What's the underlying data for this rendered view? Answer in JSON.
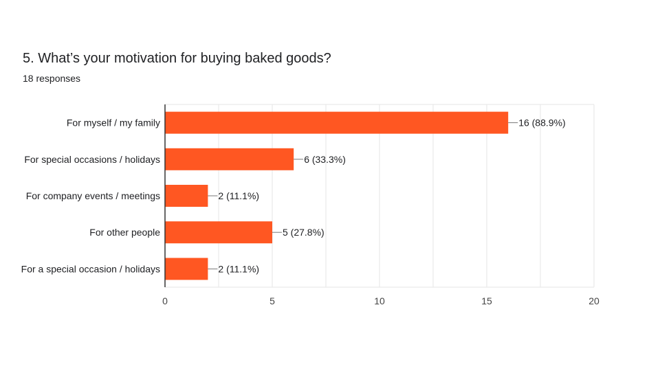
{
  "header": {
    "title": "5. What’s your motivation for buying baked goods?",
    "subtitle": "18 responses"
  },
  "colors": {
    "bar": "#ff5722",
    "grid": "#e6e6e6",
    "axis": "#333333"
  },
  "chart_data": {
    "type": "bar",
    "orientation": "horizontal",
    "title": "5. What’s your motivation for buying baked goods?",
    "subtitle": "18 responses",
    "categories": [
      "For myself / my family",
      "For special occasions / holidays",
      "For company events / meetings",
      "For other people",
      "For a special occasion / holidays"
    ],
    "values": [
      16,
      6,
      2,
      5,
      2
    ],
    "data_labels": [
      "16 (88.9%)",
      "6 (33.3%)",
      "2 (11.1%)",
      "5 (27.8%)",
      "2 (11.1%)"
    ],
    "xlim": [
      0,
      20
    ],
    "xticks": [
      0,
      5,
      10,
      15,
      20
    ],
    "xlabel": "",
    "ylabel": "",
    "grid": true,
    "legend": "none"
  }
}
